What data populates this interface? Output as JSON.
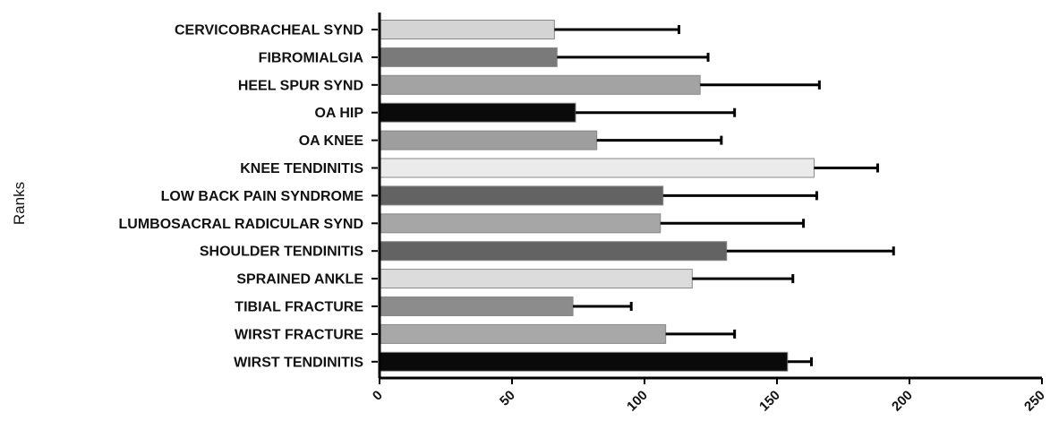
{
  "chart_data": {
    "type": "bar",
    "orientation": "horizontal",
    "ylabel": "Ranks",
    "xlabel": "",
    "xlim": [
      0,
      250
    ],
    "x_ticks": [
      "0",
      "50",
      "100",
      "150",
      "200",
      "250"
    ],
    "grid": false,
    "categories": [
      "CERVICOBRACHEAL SYND",
      "FIBROMIALGIA",
      "HEEL SPUR SYND",
      "OA HIP",
      "OA KNEE",
      "KNEE TENDINITIS",
      "LOW BACK PAIN SYNDROME",
      "LUMBOSACRAL RADICULAR SYND",
      "SHOULDER TENDINITIS",
      "SPRAINED ANKLE",
      "TIBIAL FRACTURE",
      "WIRST FRACTURE",
      "WIRST TENDINITIS"
    ],
    "values": [
      66,
      67,
      121,
      74,
      82,
      164,
      107,
      106,
      131,
      118,
      73,
      108,
      154
    ],
    "error_upper": [
      113,
      124,
      166,
      134,
      129,
      188,
      165,
      160,
      194,
      156,
      95,
      134,
      163
    ],
    "bar_colors": [
      "#d4d4d4",
      "#7a7a7a",
      "#a3a3a3",
      "#0a0a0a",
      "#9e9e9e",
      "#ebebeb",
      "#636363",
      "#a6a6a6",
      "#636363",
      "#dcdcdc",
      "#8c8c8c",
      "#a8a8a8",
      "#0a0a0a"
    ]
  }
}
